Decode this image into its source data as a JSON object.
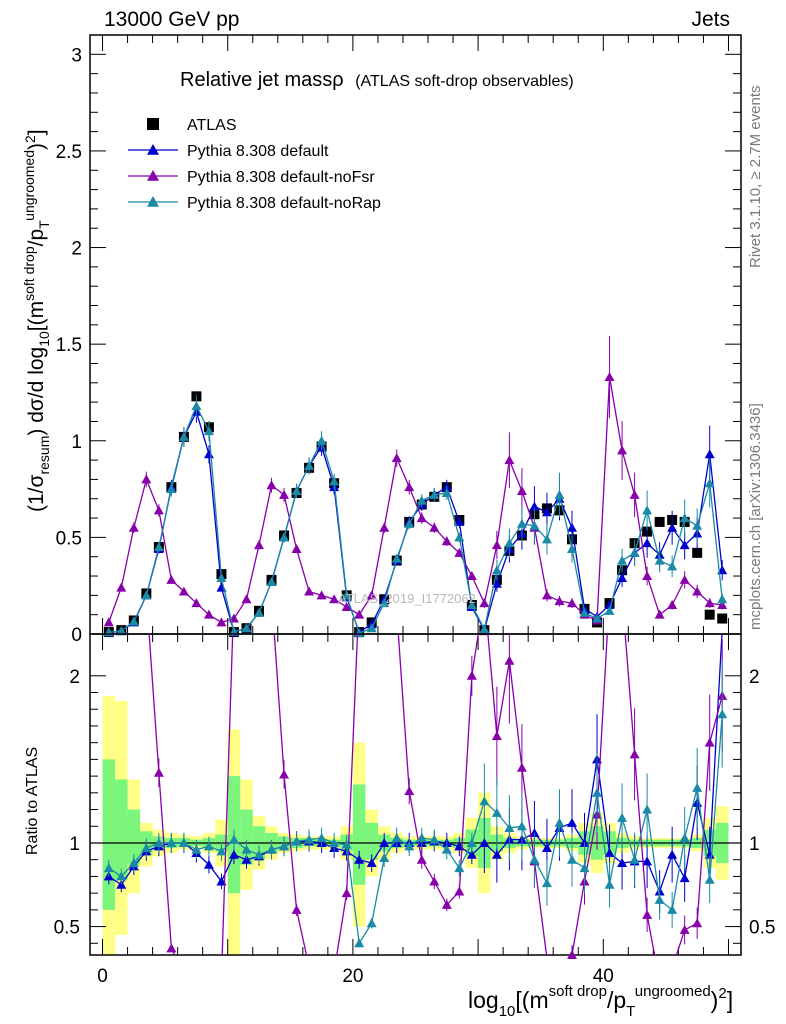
{
  "header": {
    "left": "13000 GeV pp",
    "right": "Jets"
  },
  "side": {
    "rivet": "Rivet 3.1.10, ≥ 2.7M events",
    "mcplots": "mcplots.cern.ch [arXiv:1306.3436]"
  },
  "watermark": "ATLAS_2019_I1772062",
  "colors": {
    "atlas": "#000000",
    "default": "#0000cc",
    "noFsr": "#8800aa",
    "noRap": "#1a8aa6",
    "band_stat": "#7cf57c",
    "band_tot": "#ffff88"
  },
  "chart_data": {
    "type": "line",
    "title": "Relative jet massρ",
    "subtitle": "(ATLAS soft-drop observables)",
    "xlabel": "log10[(m^soft drop/pT^ungroomed)^2]",
    "ylabel": "(1/σresum) dσ/d log10[(m^soft drop/pT^ungroomed)^2]",
    "ratio_ylabel": "Ratio to ATLAS",
    "xlim": [
      -1,
      51
    ],
    "ylim": [
      0,
      3.1
    ],
    "ratio_ylim": [
      0.33,
      2.25
    ],
    "x_ticks": [
      0,
      20,
      40
    ],
    "y_ticks": [
      0,
      0.5,
      1,
      1.5,
      2,
      2.5,
      3
    ],
    "ratio_y_ticks": [
      0.5,
      1,
      2
    ],
    "grid": false,
    "legend_position": "top-left",
    "x": [
      0.5,
      1.5,
      2.5,
      3.5,
      4.5,
      5.5,
      6.5,
      7.5,
      8.5,
      9.5,
      10.5,
      11.5,
      12.5,
      13.5,
      14.5,
      15.5,
      16.5,
      17.5,
      18.5,
      19.5,
      20.5,
      21.5,
      22.5,
      23.5,
      24.5,
      25.5,
      26.5,
      27.5,
      28.5,
      29.5,
      30.5,
      31.5,
      32.5,
      33.5,
      34.5,
      35.5,
      36.5,
      37.5,
      38.5,
      39.5,
      40.5,
      41.5,
      42.5,
      43.5,
      44.5,
      45.5,
      46.5,
      47.5,
      48.5,
      49.5
    ],
    "series": [
      {
        "name": "ATLAS",
        "marker": "square",
        "values": [
          0.01,
          0.02,
          0.07,
          0.21,
          0.45,
          0.76,
          1.02,
          1.23,
          1.07,
          0.31,
          0.01,
          0.03,
          0.12,
          0.28,
          0.51,
          0.73,
          0.86,
          0.97,
          0.78,
          0.2,
          0.01,
          0.06,
          0.18,
          0.38,
          0.58,
          0.67,
          0.71,
          0.76,
          0.59,
          0.15,
          0.02,
          0.28,
          0.43,
          0.51,
          0.62,
          0.65,
          0.64,
          0.49,
          0.13,
          0.06,
          0.16,
          0.33,
          0.47,
          0.53,
          0.58,
          0.59,
          0.58,
          0.42,
          0.1,
          0.08
        ]
      },
      {
        "name": "Pythia 8.308 default",
        "marker": "triangle",
        "values": [
          0.008,
          0.015,
          0.06,
          0.2,
          0.44,
          0.76,
          1.02,
          1.15,
          0.93,
          0.24,
          0.01,
          0.03,
          0.11,
          0.27,
          0.5,
          0.74,
          0.87,
          0.97,
          0.76,
          0.19,
          0.01,
          0.05,
          0.18,
          0.38,
          0.58,
          0.67,
          0.72,
          0.76,
          0.58,
          0.14,
          0.02,
          0.26,
          0.44,
          0.52,
          0.66,
          0.63,
          0.7,
          0.55,
          0.13,
          0.09,
          0.15,
          0.29,
          0.42,
          0.47,
          0.41,
          0.55,
          0.46,
          0.52,
          0.93,
          0.33
        ]
      },
      {
        "name": "Pythia 8.308 default-noFsr",
        "marker": "triangle",
        "values": [
          0.06,
          0.24,
          0.55,
          0.8,
          0.64,
          0.28,
          0.22,
          0.16,
          0.1,
          0.06,
          0.08,
          0.18,
          0.46,
          0.77,
          0.72,
          0.44,
          0.22,
          0.2,
          0.18,
          0.14,
          0.1,
          0.2,
          0.55,
          0.91,
          0.76,
          0.6,
          0.55,
          0.48,
          0.42,
          0.3,
          0.16,
          0.46,
          0.9,
          0.74,
          0.55,
          0.2,
          0.17,
          0.16,
          0.1,
          0.07,
          1.33,
          0.95,
          0.72,
          0.3,
          0.1,
          0.15,
          0.28,
          0.22,
          0.16,
          0.15
        ]
      },
      {
        "name": "Pythia 8.308 default-noRap",
        "marker": "triangle",
        "values": [
          0.009,
          0.016,
          0.065,
          0.2,
          0.45,
          0.75,
          1.02,
          1.18,
          1.05,
          0.29,
          0.012,
          0.03,
          0.11,
          0.27,
          0.5,
          0.74,
          0.87,
          1.0,
          0.79,
          0.2,
          0.004,
          0.03,
          0.16,
          0.39,
          0.57,
          0.69,
          0.72,
          0.73,
          0.5,
          0.15,
          0.025,
          0.33,
          0.47,
          0.57,
          0.56,
          0.49,
          0.72,
          0.44,
          0.11,
          0.08,
          0.12,
          0.38,
          0.42,
          0.64,
          0.38,
          0.35,
          0.6,
          0.56,
          0.78,
          0.18
        ]
      }
    ],
    "ratio_series": [
      {
        "name": "Pythia 8.308 default",
        "values": [
          0.8,
          0.75,
          0.86,
          0.95,
          0.98,
          1.0,
          1.0,
          0.94,
          0.87,
          0.77,
          0.93,
          0.9,
          0.92,
          0.96,
          0.98,
          1.01,
          1.01,
          1.0,
          0.97,
          0.95,
          0.9,
          0.88,
          1.0,
          1.0,
          1.0,
          1.0,
          1.01,
          1.0,
          0.98,
          0.93,
          1.0,
          0.93,
          1.02,
          1.02,
          1.06,
          0.97,
          1.09,
          1.12,
          1.0,
          1.5,
          0.94,
          0.88,
          0.89,
          0.89,
          0.71,
          0.93,
          0.79,
          1.24,
          0.93,
          2.28
        ]
      },
      {
        "name": "Pythia 8.308 default-noFsr",
        "values": [
          6.0,
          12.0,
          7.8,
          3.8,
          1.42,
          0.37,
          0.22,
          0.13,
          0.093,
          0.19,
          8.0,
          6.0,
          3.8,
          2.75,
          1.41,
          0.6,
          0.26,
          0.21,
          0.23,
          0.7,
          10.0,
          3.33,
          3.05,
          2.39,
          1.31,
          0.9,
          0.77,
          0.63,
          0.71,
          2.0,
          8.0,
          1.64,
          2.09,
          1.45,
          0.89,
          0.31,
          0.27,
          0.33,
          0.77,
          1.17,
          8.3,
          2.88,
          1.53,
          0.57,
          0.17,
          0.25,
          0.48,
          0.52,
          1.6,
          1.88
        ]
      },
      {
        "name": "Pythia 8.308 default-noRap",
        "values": [
          0.85,
          0.8,
          0.88,
          0.97,
          1.0,
          1.0,
          1.0,
          0.96,
          0.98,
          0.95,
          1.02,
          0.96,
          0.93,
          0.96,
          0.98,
          1.01,
          1.02,
          1.03,
          1.0,
          0.99,
          0.4,
          0.52,
          0.91,
          1.03,
          0.98,
          1.03,
          1.02,
          0.96,
          0.85,
          1.0,
          1.25,
          1.18,
          1.09,
          1.1,
          0.9,
          0.76,
          1.12,
          0.9,
          0.85,
          1.3,
          0.75,
          1.15,
          0.9,
          1.2,
          0.66,
          0.6,
          1.03,
          1.33,
          0.78,
          1.77
        ]
      }
    ],
    "bands": {
      "stat": [
        [
          0.6,
          1.5
        ],
        [
          0.78,
          1.38
        ],
        [
          0.87,
          1.2
        ],
        [
          0.93,
          1.07
        ],
        [
          0.96,
          1.04
        ],
        [
          0.97,
          1.03
        ],
        [
          0.98,
          1.03
        ],
        [
          0.98,
          1.02
        ],
        [
          0.97,
          1.03
        ],
        [
          0.95,
          1.05
        ],
        [
          0.7,
          1.4
        ],
        [
          0.87,
          1.2
        ],
        [
          0.9,
          1.1
        ],
        [
          0.94,
          1.06
        ],
        [
          0.96,
          1.04
        ],
        [
          0.97,
          1.03
        ],
        [
          0.98,
          1.03
        ],
        [
          0.98,
          1.02
        ],
        [
          0.98,
          1.02
        ],
        [
          0.95,
          1.05
        ],
        [
          0.75,
          1.35
        ],
        [
          0.9,
          1.12
        ],
        [
          0.95,
          1.05
        ],
        [
          0.97,
          1.03
        ],
        [
          0.98,
          1.02
        ],
        [
          0.98,
          1.02
        ],
        [
          0.98,
          1.02
        ],
        [
          0.98,
          1.02
        ],
        [
          0.97,
          1.03
        ],
        [
          0.92,
          1.08
        ],
        [
          0.85,
          1.15
        ],
        [
          0.95,
          1.05
        ],
        [
          0.97,
          1.03
        ],
        [
          0.98,
          1.02
        ],
        [
          0.98,
          1.02
        ],
        [
          0.98,
          1.02
        ],
        [
          0.98,
          1.02
        ],
        [
          0.97,
          1.03
        ],
        [
          0.93,
          1.07
        ],
        [
          0.9,
          1.1
        ],
        [
          0.93,
          1.07
        ],
        [
          0.97,
          1.03
        ],
        [
          0.98,
          1.02
        ],
        [
          0.98,
          1.02
        ],
        [
          0.98,
          1.02
        ],
        [
          0.98,
          1.02
        ],
        [
          0.98,
          1.02
        ],
        [
          0.97,
          1.03
        ],
        [
          0.92,
          1.08
        ],
        [
          0.88,
          1.12
        ]
      ],
      "total": [
        [
          0.33,
          1.88
        ],
        [
          0.45,
          1.85
        ],
        [
          0.7,
          1.38
        ],
        [
          0.86,
          1.12
        ],
        [
          0.92,
          1.08
        ],
        [
          0.94,
          1.06
        ],
        [
          0.96,
          1.05
        ],
        [
          0.96,
          1.04
        ],
        [
          0.94,
          1.06
        ],
        [
          0.86,
          1.14
        ],
        [
          0.33,
          1.68
        ],
        [
          0.72,
          1.38
        ],
        [
          0.84,
          1.16
        ],
        [
          0.9,
          1.1
        ],
        [
          0.94,
          1.06
        ],
        [
          0.95,
          1.05
        ],
        [
          0.96,
          1.04
        ],
        [
          0.96,
          1.04
        ],
        [
          0.96,
          1.04
        ],
        [
          0.9,
          1.1
        ],
        [
          0.5,
          1.6
        ],
        [
          0.8,
          1.2
        ],
        [
          0.9,
          1.1
        ],
        [
          0.94,
          1.06
        ],
        [
          0.96,
          1.04
        ],
        [
          0.96,
          1.04
        ],
        [
          0.96,
          1.04
        ],
        [
          0.96,
          1.04
        ],
        [
          0.94,
          1.06
        ],
        [
          0.85,
          1.15
        ],
        [
          0.7,
          1.3
        ],
        [
          0.9,
          1.1
        ],
        [
          0.94,
          1.06
        ],
        [
          0.96,
          1.04
        ],
        [
          0.97,
          1.03
        ],
        [
          0.97,
          1.03
        ],
        [
          0.97,
          1.03
        ],
        [
          0.95,
          1.05
        ],
        [
          0.88,
          1.12
        ],
        [
          0.82,
          1.18
        ],
        [
          0.88,
          1.12
        ],
        [
          0.94,
          1.06
        ],
        [
          0.96,
          1.04
        ],
        [
          0.97,
          1.03
        ],
        [
          0.97,
          1.03
        ],
        [
          0.97,
          1.03
        ],
        [
          0.97,
          1.03
        ],
        [
          0.95,
          1.05
        ],
        [
          0.85,
          1.15
        ],
        [
          0.78,
          1.22
        ]
      ]
    }
  }
}
